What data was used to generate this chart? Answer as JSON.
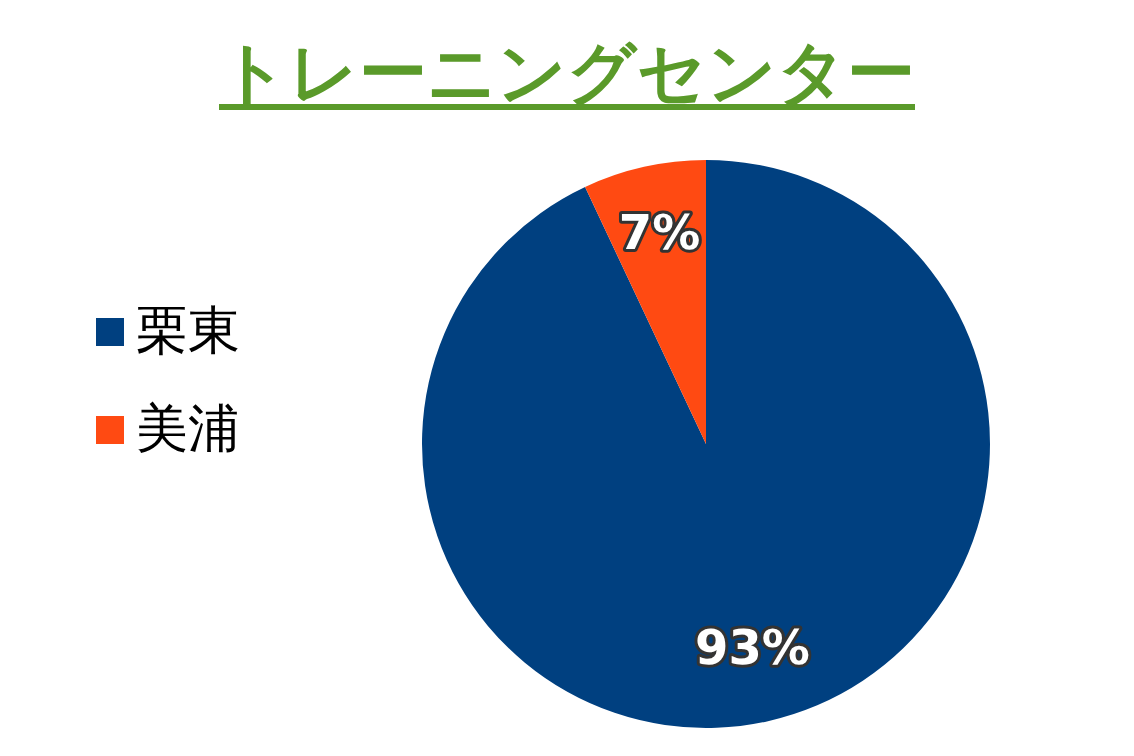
{
  "chart_data": {
    "type": "pie",
    "title": "トレーニングセンター",
    "categories": [
      "栗東",
      "美浦"
    ],
    "values": [
      93,
      7
    ],
    "colors": [
      "#004080",
      "#ff4a12"
    ],
    "value_labels": [
      "93%",
      "7%"
    ],
    "legend": "left"
  }
}
